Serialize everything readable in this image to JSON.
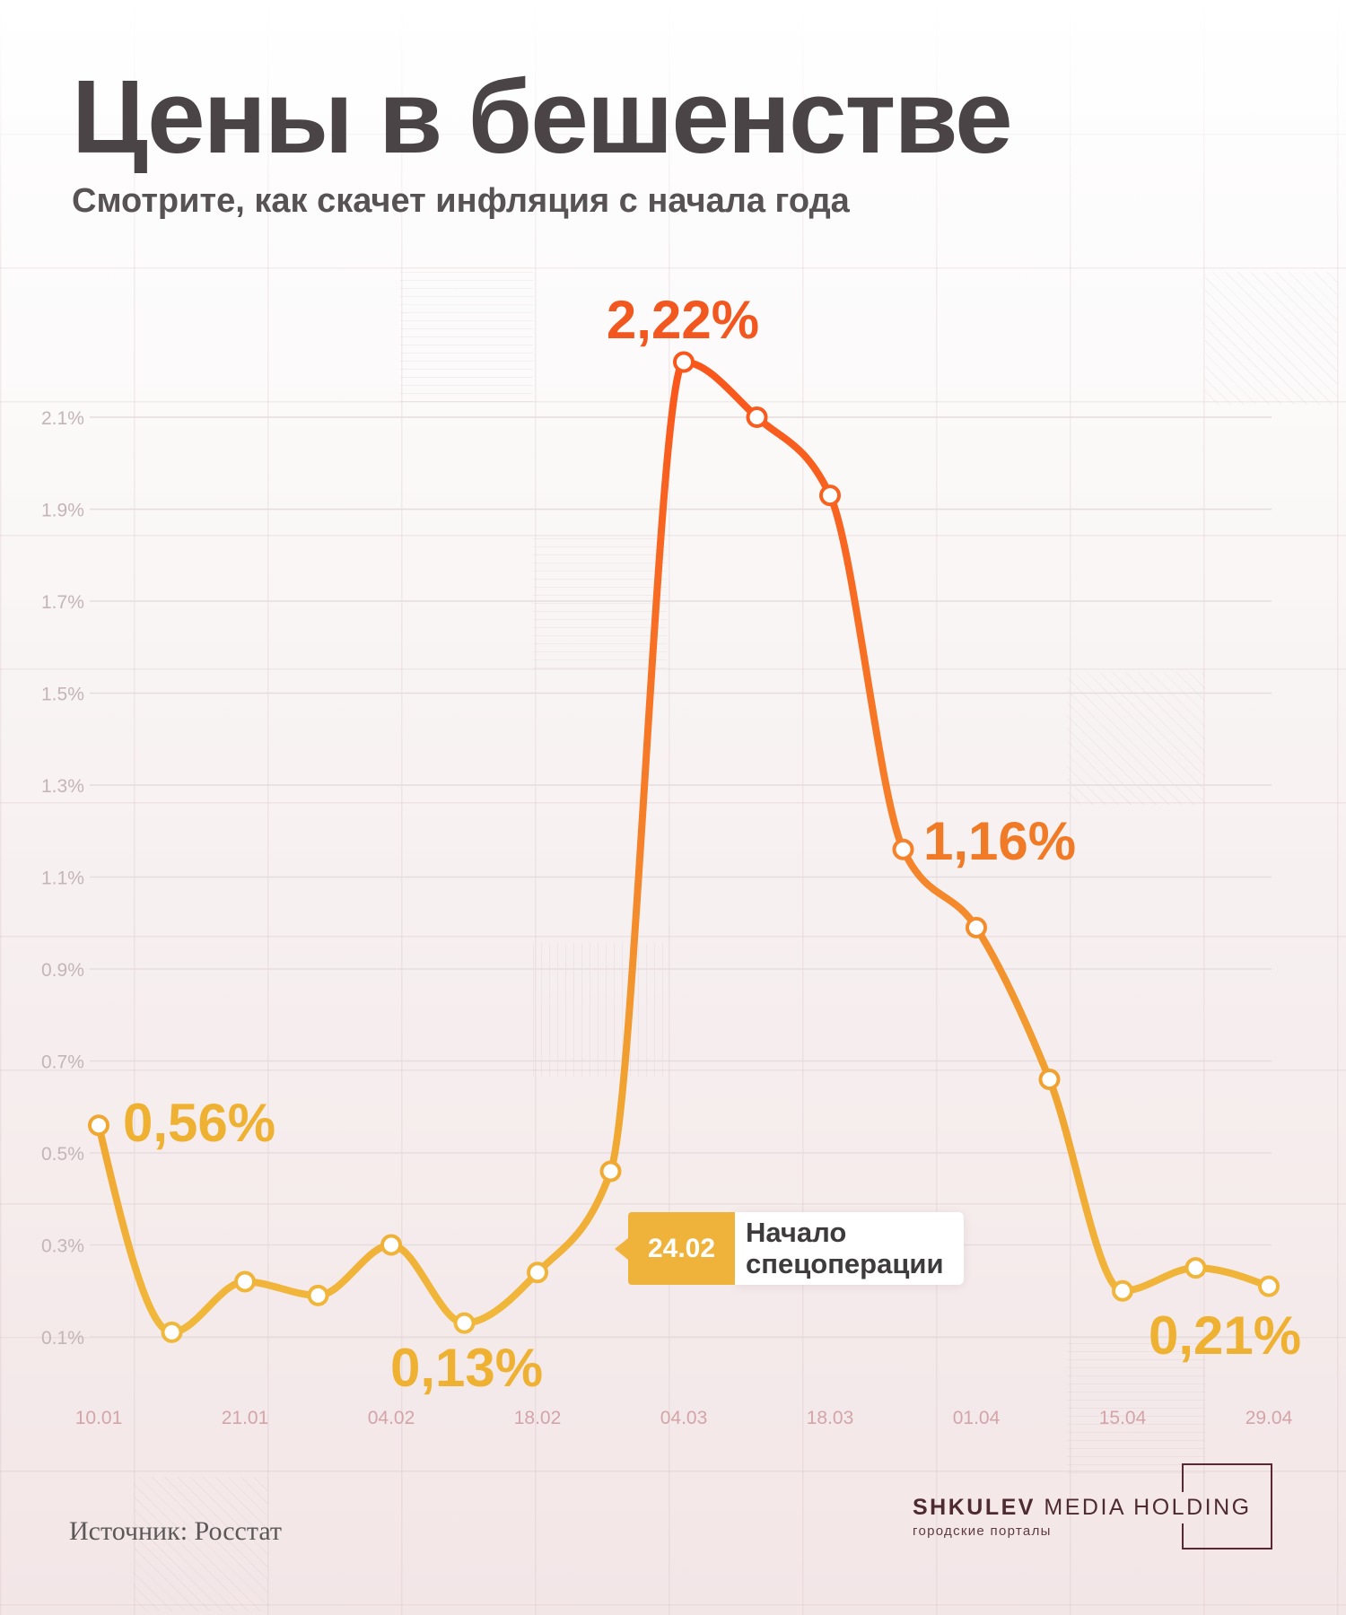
{
  "chart_data": {
    "type": "line",
    "title": "Цены в бешенстве",
    "subtitle": "Смотрите, как скачет инфляция с начала года",
    "xlabel": "",
    "ylabel": "",
    "categories": [
      "10.01",
      "",
      "21.01",
      "",
      "04.02",
      "",
      "18.02",
      "",
      "04.03",
      "",
      "18.03",
      "",
      "01.04",
      "",
      "15.04",
      "",
      "29.04"
    ],
    "values": [
      0.56,
      0.11,
      0.22,
      0.19,
      0.3,
      0.13,
      0.24,
      0.46,
      2.22,
      2.1,
      1.93,
      1.16,
      0.99,
      0.66,
      0.2,
      0.25,
      0.21
    ],
    "y_ticks": [
      0.1,
      0.3,
      0.5,
      0.7,
      0.9,
      1.1,
      1.3,
      1.5,
      1.7,
      1.9,
      2.1
    ],
    "y_tick_labels": [
      "0.1%",
      "0.3%",
      "0.5%",
      "0.7%",
      "0.9%",
      "1.1%",
      "1.3%",
      "1.5%",
      "1.7%",
      "1.9%",
      "2.1%"
    ],
    "ylim": [
      0.1,
      2.1
    ],
    "grid": true,
    "annotations": [
      {
        "text": "2,22%",
        "color": "#F2571F"
      },
      {
        "text": "1,16%",
        "color": "#F07A26"
      },
      {
        "text": "0,56%",
        "color": "#EFB132"
      },
      {
        "text": "0,13%",
        "color": "#EFB132"
      },
      {
        "text": "0,21%",
        "color": "#EFB132"
      }
    ],
    "event": {
      "date": "24.02",
      "label_line1": "Начало",
      "label_line2": "спецоперации"
    }
  },
  "colors": {
    "line_top": "#F9561C",
    "line_mid": "#F5822A",
    "line_low": "#F0A531",
    "line_bottom": "#F0B93C",
    "event_badge": "#EFB23A"
  },
  "source": "Источник: Росстат",
  "brand": {
    "name_bold": "SHKULEV",
    "name_light": "MEDIA HOLDING",
    "tagline": "городские порталы"
  }
}
